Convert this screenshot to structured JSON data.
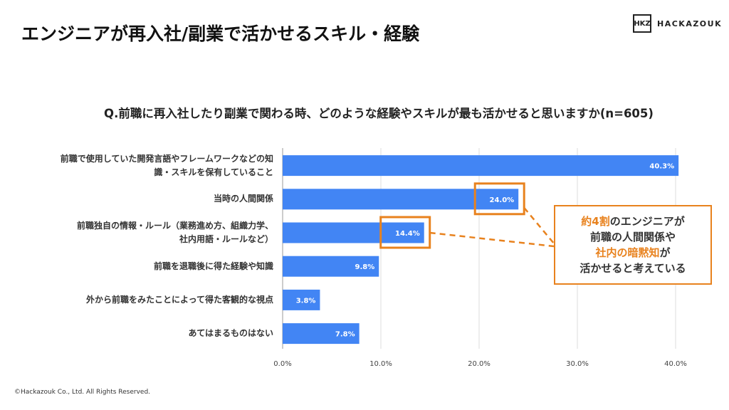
{
  "title": "エンジニアが再入社/副業で活かせるスキル・経験",
  "logo": {
    "mark": "HKZ",
    "text": "HACKAZOUK"
  },
  "question": "Q.前職に再入社したり副業で関わる時、どのような経験やスキルが最も活かせると思いますか(n=605)",
  "footer": "©Hackazouk Co., Ltd. All Rights Reserved.",
  "callout": {
    "line1_hl": "約4割",
    "line1": "のエンジニアが",
    "line2": "前職の人間関係や",
    "line3_hl": "社内の暗黙知",
    "line3": "が",
    "line4": "活かせると考えている"
  },
  "colors": {
    "bar": "#4285f4",
    "accent": "#e8821e"
  },
  "chart_data": {
    "type": "bar",
    "orientation": "horizontal",
    "categories": [
      "前職で使用していた開発言語やフレームワークなどの知識・スキルを保有していること",
      "当時の人間関係",
      "前職独自の情報・ルール（業務進め方、組織力学、社内用語・ルールなど）",
      "前職を退職後に得た経験や知識",
      "外から前職をみたことによって得た客観的な視点",
      "あてはまるものはない"
    ],
    "category_lines": [
      [
        "前職で使用していた開発言語やフレームワークなどの知",
        "識・スキルを保有していること"
      ],
      [
        "当時の人間関係"
      ],
      [
        "前職独自の情報・ルール（業務進め方、組織力学、",
        "社内用語・ルールなど）"
      ],
      [
        "前職を退職後に得た経験や知識"
      ],
      [
        "外から前職をみたことによって得た客観的な視点"
      ],
      [
        "あてはまるものはない"
      ]
    ],
    "values": [
      40.3,
      24.0,
      14.4,
      9.8,
      3.8,
      7.8
    ],
    "data_labels": [
      "40.3%",
      "24.0%",
      "14.4%",
      "9.8%",
      "3.8%",
      "7.8%"
    ],
    "xlim": [
      0,
      40
    ],
    "ticks": [
      "0.0%",
      "10.0%",
      "20.0%",
      "30.0%",
      "40.0%"
    ],
    "tick_values": [
      0,
      10,
      20,
      30,
      40
    ],
    "grid": true,
    "highlighted": [
      1,
      2
    ]
  }
}
